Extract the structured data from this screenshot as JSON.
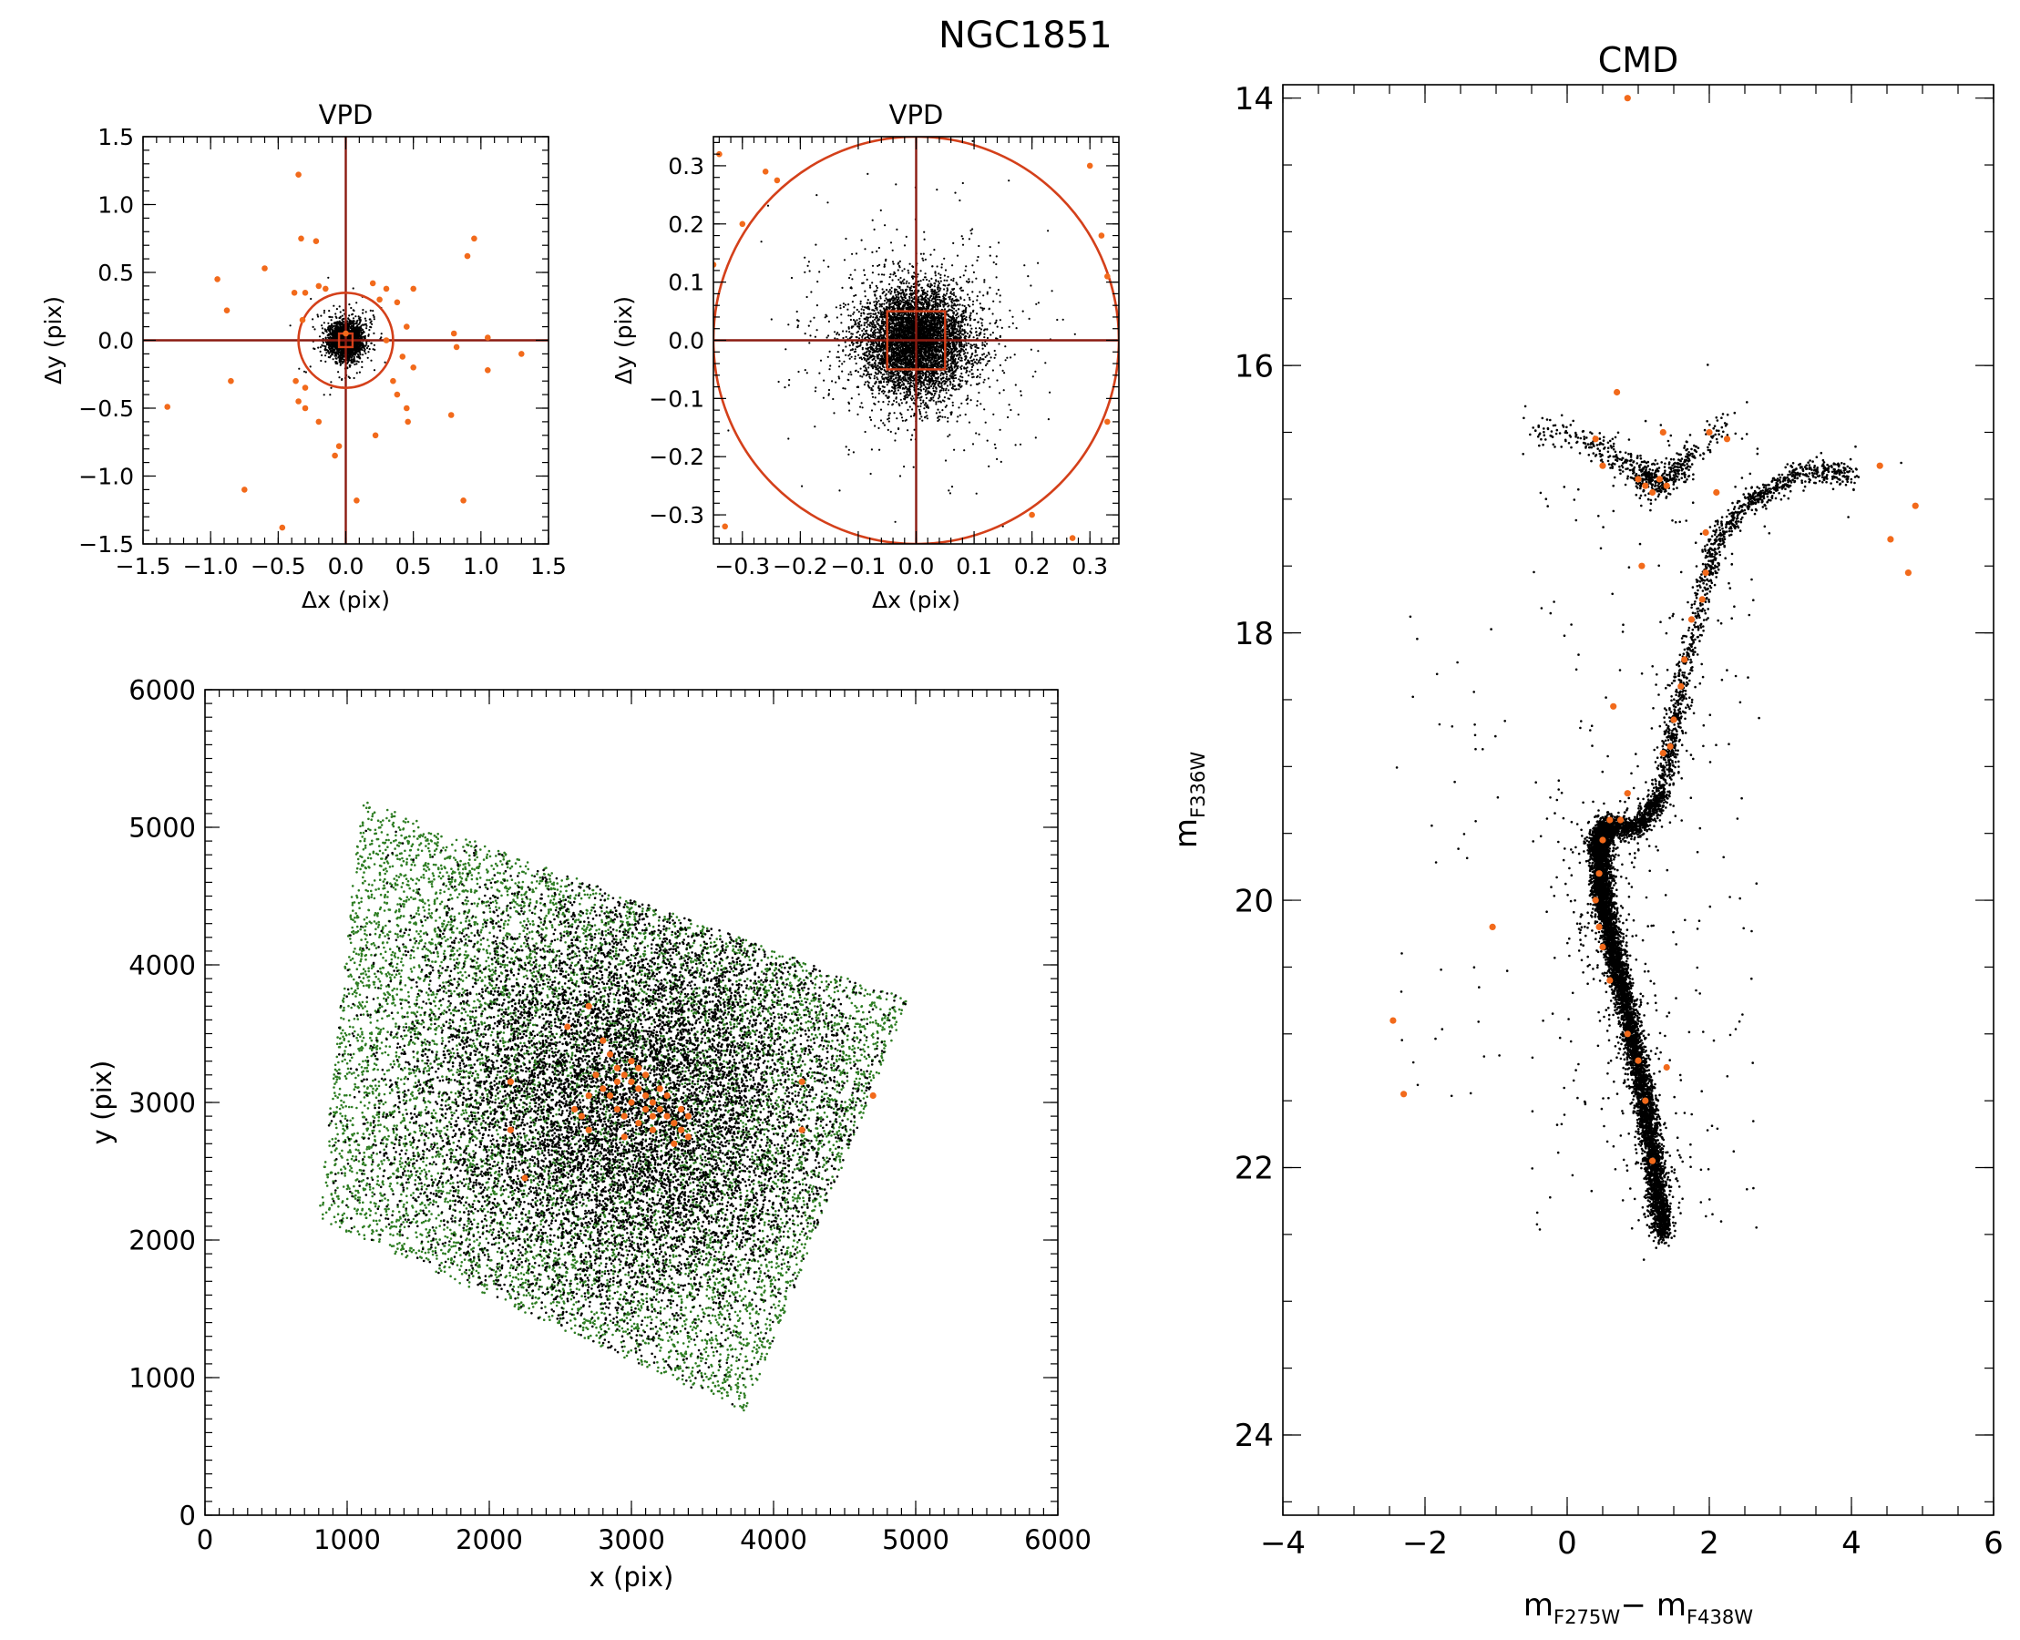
{
  "figure": {
    "title": "NGC1851"
  },
  "colors": {
    "black": "#000000",
    "orange": "#f26a1b",
    "darkred": "#8b1a10",
    "green": "#2e7d23",
    "circle": "#d4401a"
  },
  "chart_data": [
    {
      "id": "vpd1",
      "type": "scatter",
      "title": "VPD",
      "xlabel": "Δx (pix)",
      "ylabel": "Δy (pix)",
      "xlim": [
        -1.5,
        1.5
      ],
      "ylim": [
        -1.5,
        1.5
      ],
      "xticks": [
        -1.5,
        -1.0,
        -0.5,
        0.0,
        0.5,
        1.0,
        1.5
      ],
      "yticks": [
        -1.5,
        -1.0,
        -0.5,
        0.0,
        0.5,
        1.0,
        1.5
      ],
      "xticklabels": [
        "−1.5",
        "−1.0",
        "−0.5",
        "0.0",
        "0.5",
        "1.0",
        "1.5"
      ],
      "yticklabels": [
        "−1.5",
        "−1.0",
        "−0.5",
        "0.0",
        "0.5",
        "1.0",
        "1.5"
      ],
      "selection_circle_radius": 0.35,
      "selection_box_halfwidth": 0.05,
      "series": [
        {
          "name": "",
          "color": "black",
          "distribution": "gaussian",
          "center": [
            0,
            0
          ],
          "sigma": 0.06,
          "count": 2500
        },
        {
          "name": "",
          "color": "orange",
          "points": [
            [
              -0.35,
              1.22
            ],
            [
              -0.33,
              0.75
            ],
            [
              -0.22,
              0.73
            ],
            [
              -0.6,
              0.53
            ],
            [
              -0.95,
              0.45
            ],
            [
              -0.88,
              0.22
            ],
            [
              -0.85,
              -0.3
            ],
            [
              -1.32,
              -0.49
            ],
            [
              -0.75,
              -1.1
            ],
            [
              -0.47,
              -1.38
            ],
            [
              -0.2,
              -0.6
            ],
            [
              -0.3,
              -0.35
            ],
            [
              -0.35,
              -0.45
            ],
            [
              -0.3,
              -0.5
            ],
            [
              -0.37,
              -0.3
            ],
            [
              -0.38,
              0.35
            ],
            [
              -0.32,
              0.15
            ],
            [
              -0.3,
              0.35
            ],
            [
              -0.15,
              0.38
            ],
            [
              0.2,
              0.42
            ],
            [
              0.3,
              0.38
            ],
            [
              0.5,
              0.38
            ],
            [
              0.25,
              0.3
            ],
            [
              0.45,
              0.1
            ],
            [
              0.42,
              -0.12
            ],
            [
              0.38,
              -0.4
            ],
            [
              0.45,
              -0.5
            ],
            [
              0.46,
              -0.6
            ],
            [
              0.22,
              -0.7
            ],
            [
              0.08,
              -1.18
            ],
            [
              0.9,
              0.62
            ],
            [
              0.95,
              0.75
            ],
            [
              0.8,
              0.05
            ],
            [
              0.82,
              -0.05
            ],
            [
              0.78,
              -0.55
            ],
            [
              0.87,
              -1.18
            ],
            [
              1.05,
              -0.22
            ],
            [
              1.3,
              -0.1
            ],
            [
              -0.05,
              -0.78
            ],
            [
              -0.08,
              -0.85
            ],
            [
              0.3,
              0.0
            ],
            [
              0.35,
              -0.3
            ],
            [
              0.5,
              -0.2
            ],
            [
              -0.2,
              0.4
            ],
            [
              0.38,
              0.28
            ],
            [
              1.05,
              0.02
            ],
            [
              0.0,
              0.05
            ]
          ]
        }
      ]
    },
    {
      "id": "vpd2",
      "type": "scatter",
      "title": "VPD",
      "xlabel": "Δx (pix)",
      "ylabel": "Δy (pix)",
      "xlim": [
        -0.35,
        0.35
      ],
      "ylim": [
        -0.35,
        0.35
      ],
      "xticks": [
        -0.3,
        -0.2,
        -0.1,
        0.0,
        0.1,
        0.2,
        0.3
      ],
      "yticks": [
        -0.3,
        -0.2,
        -0.1,
        0.0,
        0.1,
        0.2,
        0.3
      ],
      "xticklabels": [
        "−0.3",
        "−0.2",
        "−0.1",
        "0.0",
        "0.1",
        "0.2",
        "0.3"
      ],
      "yticklabels": [
        "−0.3",
        "−0.2",
        "−0.1",
        "0.0",
        "0.1",
        "0.2",
        "0.3"
      ],
      "selection_circle_radius": 0.35,
      "selection_box_halfwidth": 0.05,
      "series": [
        {
          "name": "",
          "color": "black",
          "distribution": "gaussian",
          "center": [
            0,
            0
          ],
          "sigma": 0.045,
          "count": 6000
        },
        {
          "name": "",
          "color": "orange",
          "points": [
            [
              -0.34,
              0.32
            ],
            [
              -0.26,
              0.29
            ],
            [
              -0.24,
              0.275
            ],
            [
              -0.3,
              0.2
            ],
            [
              -0.35,
              0.13
            ],
            [
              0.3,
              0.3
            ],
            [
              0.32,
              0.18
            ],
            [
              0.33,
              0.11
            ],
            [
              0.33,
              -0.14
            ],
            [
              0.2,
              -0.3
            ],
            [
              0.27,
              -0.34
            ],
            [
              -0.33,
              -0.32
            ]
          ]
        }
      ]
    },
    {
      "id": "xy",
      "type": "scatter",
      "title": "",
      "xlabel": "x (pix)",
      "ylabel": "y (pix)",
      "xlim": [
        0,
        6000
      ],
      "ylim": [
        0,
        6000
      ],
      "xticks": [
        0,
        1000,
        2000,
        3000,
        4000,
        5000,
        6000
      ],
      "yticks": [
        0,
        1000,
        2000,
        3000,
        4000,
        5000,
        6000
      ],
      "xticklabels": [
        "0",
        "1000",
        "2000",
        "3000",
        "4000",
        "5000",
        "6000"
      ],
      "yticklabels": [
        "0",
        "1000",
        "2000",
        "3000",
        "4000",
        "5000",
        "6000"
      ],
      "footprint_corners": [
        [
          1100,
          5200
        ],
        [
          4950,
          3750
        ],
        [
          3800,
          750
        ],
        [
          800,
          2150
        ]
      ],
      "series": [
        {
          "name": "",
          "color": "green",
          "distribution": "uniform-in-footprint",
          "count": 9000
        },
        {
          "name": "",
          "color": "black",
          "distribution": "gaussian",
          "center": [
            3000,
            3000
          ],
          "sigma": 850,
          "count": 10000
        },
        {
          "name": "",
          "color": "orange",
          "points": [
            [
              2550,
              3550
            ],
            [
              2700,
              3700
            ],
            [
              2800,
              3450
            ],
            [
              2850,
              3350
            ],
            [
              2900,
              3250
            ],
            [
              2950,
              3200
            ],
            [
              3000,
              3150
            ],
            [
              3050,
              3100
            ],
            [
              3100,
              3050
            ],
            [
              3150,
              3000
            ],
            [
              3200,
              2950
            ],
            [
              3250,
              2900
            ],
            [
              3300,
              2850
            ],
            [
              3350,
              2800
            ],
            [
              3400,
              2750
            ],
            [
              2800,
              3100
            ],
            [
              2850,
              3050
            ],
            [
              2900,
              2950
            ],
            [
              2950,
              2900
            ],
            [
              3000,
              3000
            ],
            [
              3050,
              2850
            ],
            [
              3100,
              2950
            ],
            [
              3150,
              2800
            ],
            [
              2750,
              3200
            ],
            [
              2700,
              3050
            ],
            [
              2650,
              2900
            ],
            [
              3200,
              3100
            ],
            [
              3000,
              3300
            ],
            [
              3100,
              3200
            ],
            [
              3250,
              3050
            ],
            [
              3350,
              2950
            ],
            [
              2900,
              3150
            ],
            [
              3050,
              3250
            ],
            [
              2600,
              2950
            ],
            [
              2250,
              2450
            ],
            [
              2150,
              2800
            ],
            [
              2150,
              3150
            ],
            [
              4200,
              3150
            ],
            [
              4200,
              2800
            ],
            [
              4700,
              3050
            ],
            [
              3300,
              2700
            ],
            [
              2950,
              2750
            ],
            [
              2700,
              2800
            ],
            [
              3400,
              2900
            ],
            [
              3150,
              2900
            ]
          ]
        }
      ]
    },
    {
      "id": "cmd",
      "type": "scatter",
      "title": "CMD",
      "xlabel": "mF275W − mF438W",
      "ylabel": "mF336W",
      "xlim": [
        -4,
        6
      ],
      "ylim": [
        24.6,
        13.9
      ],
      "xticks": [
        -4,
        -2,
        0,
        2,
        4,
        6
      ],
      "yticks": [
        14,
        16,
        18,
        20,
        22,
        24
      ],
      "xticklabels": [
        "−4",
        "−2",
        "0",
        "2",
        "4",
        "6"
      ],
      "yticklabels": [
        "14",
        "16",
        "18",
        "20",
        "22",
        "24"
      ],
      "series": [
        {
          "name": "",
          "color": "black",
          "distribution": "main-sequence",
          "ridge": [
            [
              1.35,
              22.5
            ],
            [
              1.1,
              21.5
            ],
            [
              0.75,
              20.6
            ],
            [
              0.5,
              20.0
            ],
            [
              0.45,
              19.6
            ],
            [
              0.55,
              19.45
            ],
            [
              1.0,
              19.45
            ],
            [
              1.35,
              19.2
            ],
            [
              1.6,
              18.4
            ],
            [
              1.9,
              17.7
            ],
            [
              2.1,
              17.3
            ],
            [
              2.6,
              17.0
            ],
            [
              3.3,
              16.8
            ],
            [
              4.0,
              16.8
            ]
          ],
          "count": 9000
        },
        {
          "name": "",
          "color": "black",
          "distribution": "horizontal-branch",
          "ridge": [
            [
              -0.5,
              16.45
            ],
            [
              0.2,
              16.55
            ],
            [
              0.6,
              16.65
            ],
            [
              1.0,
              16.8
            ],
            [
              1.3,
              16.9
            ],
            [
              1.7,
              16.7
            ],
            [
              2.3,
              16.4
            ]
          ],
          "count": 600
        },
        {
          "name": "",
          "color": "orange",
          "points": [
            [
              0.85,
              14.0
            ],
            [
              0.7,
              16.2
            ],
            [
              0.4,
              16.55
            ],
            [
              0.5,
              16.75
            ],
            [
              1.0,
              16.85
            ],
            [
              1.1,
              16.9
            ],
            [
              1.2,
              16.95
            ],
            [
              1.3,
              16.85
            ],
            [
              1.4,
              16.9
            ],
            [
              1.35,
              16.5
            ],
            [
              2.0,
              16.5
            ],
            [
              2.25,
              16.55
            ],
            [
              2.1,
              16.95
            ],
            [
              1.95,
              17.25
            ],
            [
              1.95,
              17.55
            ],
            [
              1.9,
              17.75
            ],
            [
              1.75,
              17.9
            ],
            [
              1.65,
              18.2
            ],
            [
              1.6,
              18.4
            ],
            [
              1.5,
              18.65
            ],
            [
              1.45,
              18.85
            ],
            [
              1.35,
              18.9
            ],
            [
              0.85,
              19.2
            ],
            [
              0.75,
              19.4
            ],
            [
              0.6,
              19.4
            ],
            [
              0.5,
              19.55
            ],
            [
              0.45,
              19.8
            ],
            [
              0.4,
              20.0
            ],
            [
              0.45,
              20.2
            ],
            [
              0.5,
              20.35
            ],
            [
              0.6,
              20.6
            ],
            [
              0.85,
              21.0
            ],
            [
              1.0,
              21.2
            ],
            [
              1.1,
              21.5
            ],
            [
              1.2,
              21.95
            ],
            [
              1.4,
              21.25
            ],
            [
              4.4,
              16.75
            ],
            [
              4.55,
              17.3
            ],
            [
              4.8,
              17.55
            ],
            [
              4.9,
              17.05
            ],
            [
              -1.05,
              20.2
            ],
            [
              -2.45,
              20.9
            ],
            [
              -2.3,
              21.45
            ],
            [
              0.65,
              18.55
            ],
            [
              1.05,
              17.5
            ]
          ]
        }
      ]
    }
  ]
}
